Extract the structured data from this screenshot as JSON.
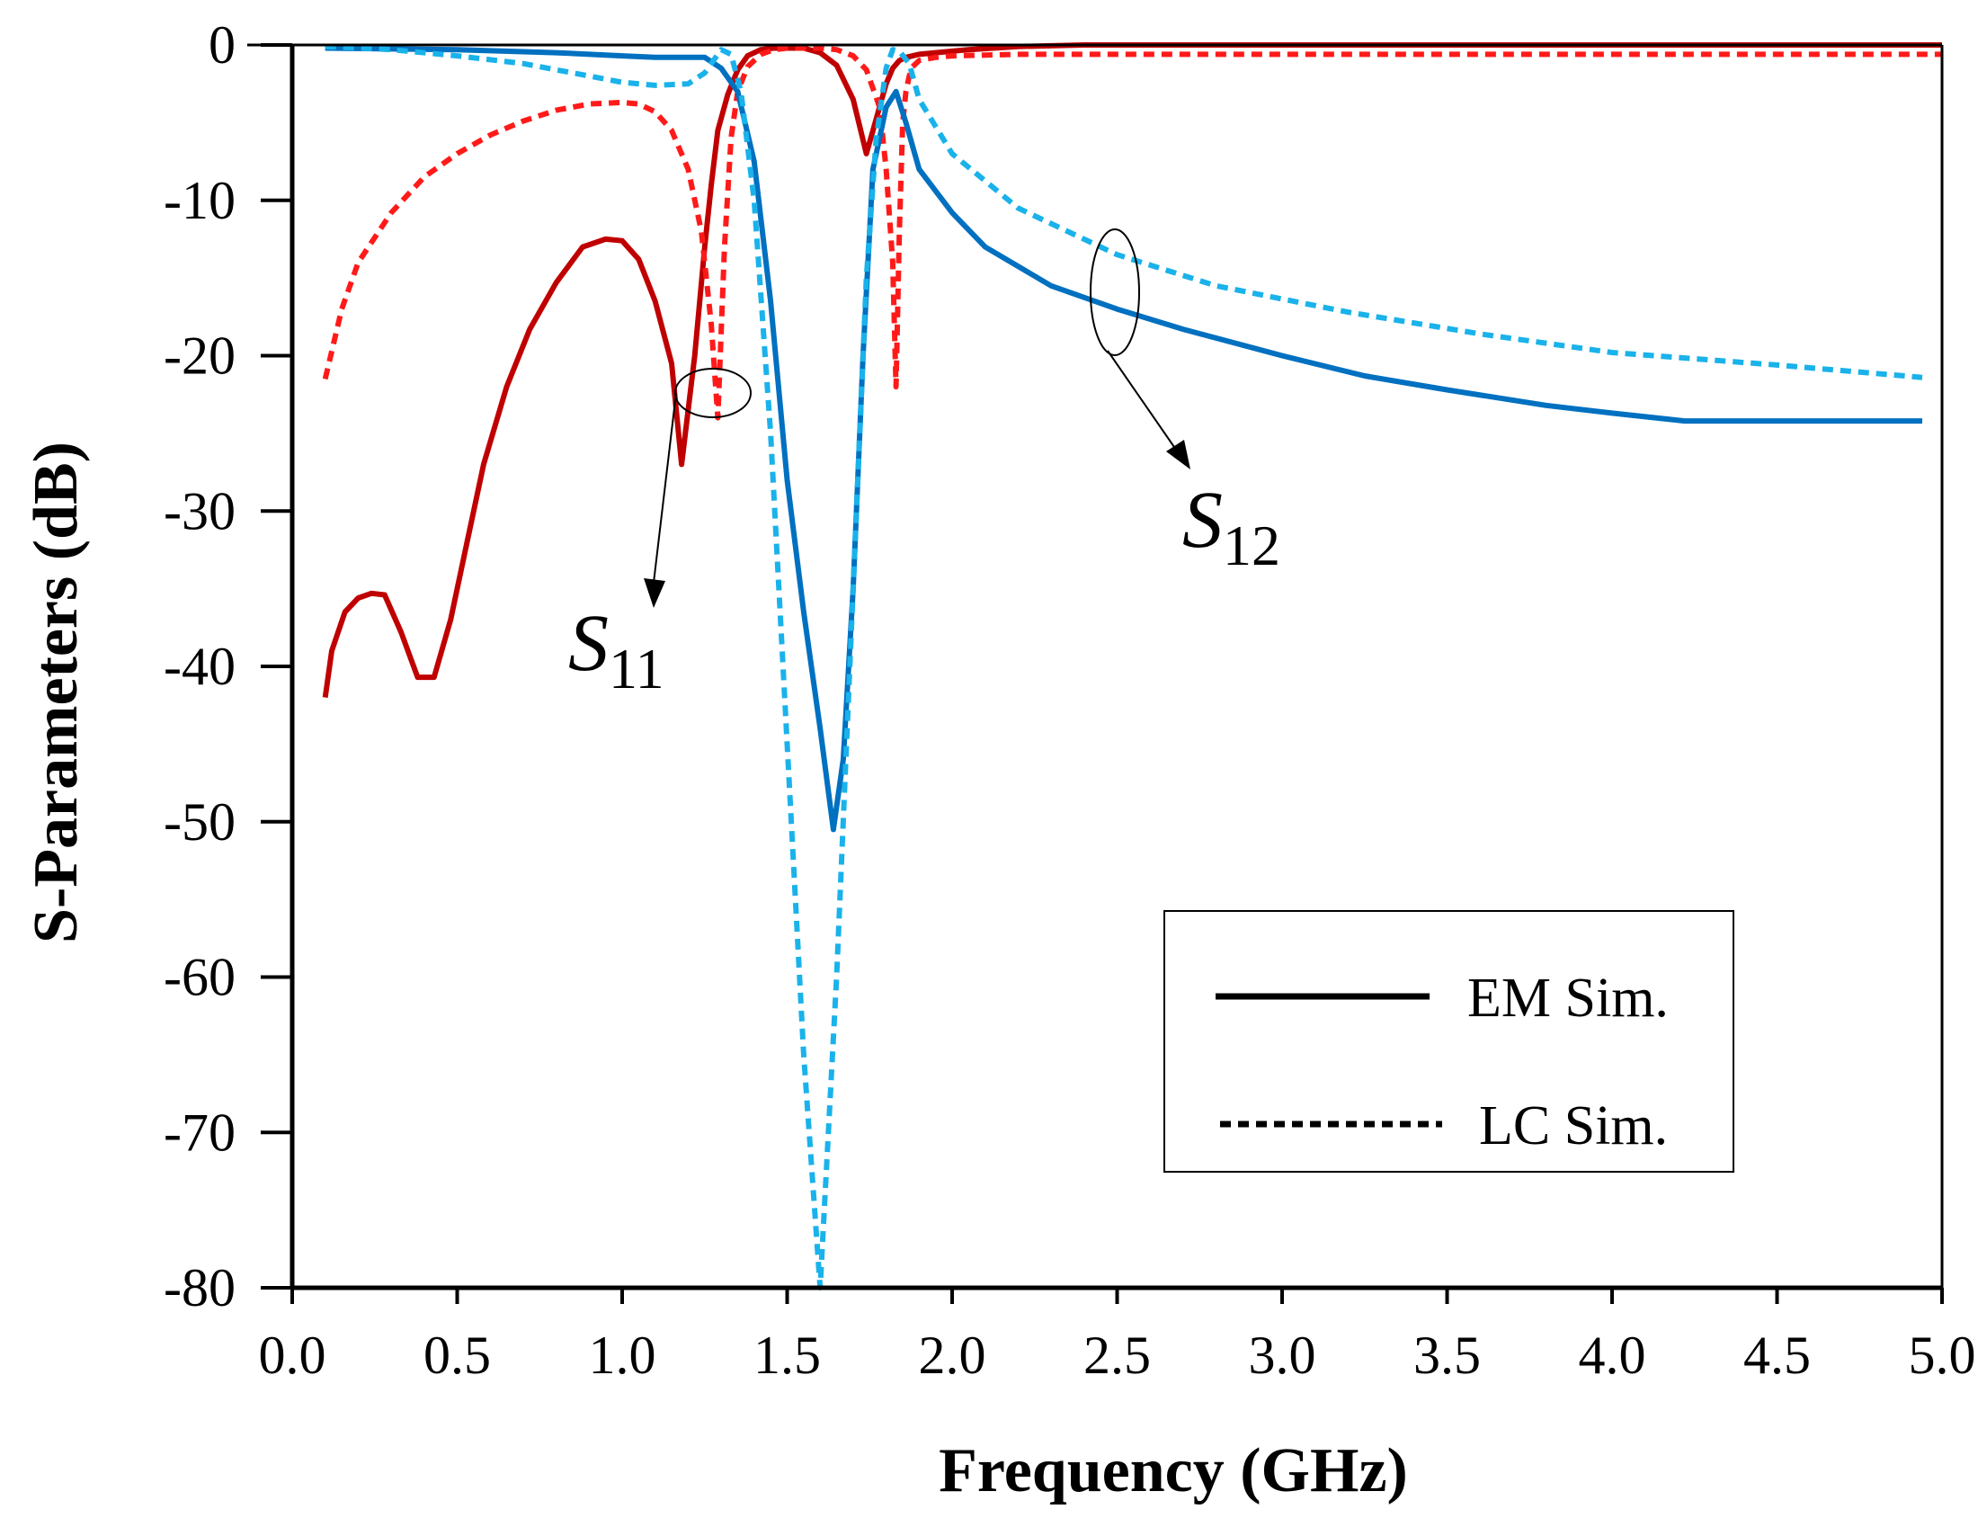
{
  "chart_data": {
    "type": "line",
    "title": "",
    "xlabel": "Frequency  (GHz)",
    "ylabel": "S-Parameters (dB)",
    "xlim": [
      0.0,
      5.0
    ],
    "ylim": [
      -80,
      0
    ],
    "xticks": [
      "0.0",
      "0.5",
      "1.0",
      "1.5",
      "2.0",
      "2.5",
      "3.0",
      "3.5",
      "4.0",
      "4.5",
      "5.0"
    ],
    "yticks": [
      "0",
      "-10",
      "-20",
      "-30",
      "-40",
      "-50",
      "-60",
      "-70",
      "-80"
    ],
    "grid": false,
    "legend": {
      "position": "lower-right",
      "entries": [
        {
          "label": "EM Sim.",
          "style": "solid"
        },
        {
          "label": "LC Sim.",
          "style": "dashed"
        }
      ]
    },
    "annotations": [
      {
        "main": "S",
        "sub": "11",
        "target": "S11"
      },
      {
        "main": "S",
        "sub": "12",
        "target": "S12"
      }
    ],
    "series": [
      {
        "name": "S11 EM Sim.",
        "style": "solid",
        "color": "#c00000",
        "x": [
          0.1,
          0.12,
          0.16,
          0.2,
          0.24,
          0.28,
          0.33,
          0.38,
          0.43,
          0.48,
          0.53,
          0.58,
          0.65,
          0.72,
          0.8,
          0.88,
          0.95,
          1.0,
          1.05,
          1.1,
          1.15,
          1.18,
          1.22,
          1.25,
          1.27,
          1.29,
          1.32,
          1.35,
          1.38,
          1.42,
          1.46,
          1.5,
          1.55,
          1.6,
          1.65,
          1.7,
          1.74,
          1.78,
          1.8,
          1.82,
          1.84,
          1.86,
          1.9,
          1.95,
          2.05,
          2.2,
          2.4,
          2.6,
          3.0,
          3.5,
          4.0,
          4.5,
          5.0
        ],
        "y": [
          -42.0,
          -39.0,
          -36.5,
          -35.6,
          -35.3,
          -35.4,
          -37.8,
          -40.7,
          -40.7,
          -37.0,
          -32.0,
          -27.0,
          -22.0,
          -18.3,
          -15.3,
          -13.0,
          -12.5,
          -12.6,
          -13.8,
          -16.5,
          -20.5,
          -27.0,
          -20.0,
          -13.0,
          -9.0,
          -5.5,
          -3.2,
          -1.6,
          -0.7,
          -0.3,
          -0.2,
          -0.2,
          -0.2,
          -0.5,
          -1.3,
          -3.5,
          -7.0,
          -4.0,
          -2.5,
          -1.5,
          -1.0,
          -0.8,
          -0.6,
          -0.5,
          -0.3,
          -0.1,
          0.0,
          0.0,
          0.0,
          0.0,
          0.0,
          0.0,
          0.0
        ]
      },
      {
        "name": "S11 LC Sim.",
        "style": "dashed",
        "color": "#ff1a1a",
        "x": [
          0.1,
          0.15,
          0.2,
          0.3,
          0.4,
          0.5,
          0.6,
          0.7,
          0.8,
          0.9,
          1.0,
          1.05,
          1.1,
          1.15,
          1.2,
          1.24,
          1.27,
          1.29,
          1.31,
          1.33,
          1.35,
          1.38,
          1.42,
          1.46,
          1.5,
          1.55,
          1.6,
          1.65,
          1.7,
          1.74,
          1.78,
          1.8,
          1.82,
          1.83,
          1.84,
          1.85,
          1.86,
          1.87,
          1.88,
          1.9,
          1.95,
          2.0,
          2.2,
          2.5,
          3.0,
          3.5,
          4.0,
          4.5,
          5.0
        ],
        "y": [
          -21.5,
          -17.0,
          -14.0,
          -10.8,
          -8.5,
          -7.0,
          -5.8,
          -4.9,
          -4.2,
          -3.8,
          -3.7,
          -3.8,
          -4.3,
          -5.5,
          -8.0,
          -12.0,
          -18.0,
          -24.0,
          -13.0,
          -6.0,
          -3.0,
          -1.4,
          -0.6,
          -0.3,
          -0.2,
          -0.2,
          -0.2,
          -0.3,
          -0.7,
          -1.6,
          -4.0,
          -8.0,
          -14.0,
          -22.0,
          -12.0,
          -5.0,
          -3.0,
          -2.0,
          -1.4,
          -1.0,
          -0.8,
          -0.7,
          -0.6,
          -0.6,
          -0.6,
          -0.6,
          -0.6,
          -0.6,
          -0.6
        ]
      },
      {
        "name": "S12 EM Sim.",
        "style": "solid",
        "color": "#0070c0",
        "x": [
          0.1,
          0.5,
          0.8,
          1.0,
          1.1,
          1.25,
          1.3,
          1.35,
          1.4,
          1.45,
          1.5,
          1.55,
          1.6,
          1.64,
          1.67,
          1.7,
          1.73,
          1.76,
          1.8,
          1.83,
          1.86,
          1.9,
          2.0,
          2.1,
          2.3,
          2.5,
          2.7,
          3.0,
          3.25,
          3.5,
          3.8,
          4.0,
          4.22,
          4.6,
          4.94
        ],
        "y": [
          -0.2,
          -0.3,
          -0.5,
          -0.7,
          -0.8,
          -0.8,
          -1.5,
          -3.0,
          -7.5,
          -16.5,
          -28.0,
          -36.5,
          -44.0,
          -50.5,
          -46.0,
          -35.0,
          -20.0,
          -8.0,
          -4.0,
          -3.0,
          -5.0,
          -8.0,
          -10.8,
          -13.0,
          -15.5,
          -17.0,
          -18.3,
          -20.0,
          -21.3,
          -22.2,
          -23.2,
          -23.7,
          -24.2,
          -24.2,
          -24.2
        ]
      },
      {
        "name": "S12 LC Sim.",
        "style": "dashed",
        "color": "#1ab2ea",
        "x": [
          0.1,
          0.3,
          0.5,
          0.7,
          0.9,
          1.0,
          1.1,
          1.2,
          1.25,
          1.28,
          1.3,
          1.33,
          1.36,
          1.4,
          1.45,
          1.5,
          1.55,
          1.6,
          1.65,
          1.7,
          1.74,
          1.77,
          1.8,
          1.82,
          1.84,
          1.87,
          1.9,
          2.0,
          2.2,
          2.5,
          2.8,
          3.2,
          3.6,
          4.0,
          4.5,
          4.94
        ],
        "y": [
          -0.1,
          -0.3,
          -0.7,
          -1.2,
          -2.0,
          -2.4,
          -2.6,
          -2.5,
          -1.8,
          -0.9,
          -0.3,
          -0.6,
          -3.0,
          -10.0,
          -25.0,
          -45.0,
          -65.0,
          -80.0,
          -60.0,
          -35.0,
          -15.0,
          -6.0,
          -1.5,
          -0.3,
          -0.4,
          -1.2,
          -3.5,
          -7.0,
          -10.5,
          -13.5,
          -15.5,
          -17.2,
          -18.6,
          -19.8,
          -20.6,
          -21.4
        ]
      }
    ]
  }
}
